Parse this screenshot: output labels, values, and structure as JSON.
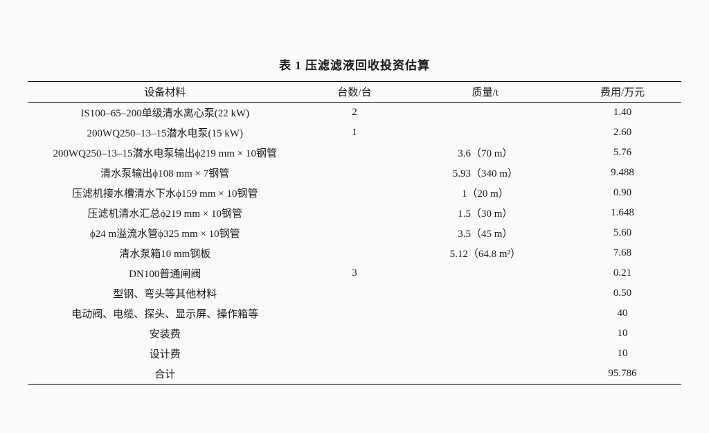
{
  "table": {
    "caption": "表 1  压滤滤液回收投资估算",
    "columns": [
      {
        "key": "material",
        "label": "设备材料"
      },
      {
        "key": "qty",
        "label": "台数/台"
      },
      {
        "key": "mass",
        "label": "质量/t"
      },
      {
        "key": "cost",
        "label": "费用/万元"
      }
    ],
    "rows": [
      {
        "material": "IS100–65–200单级清水离心泵(22 kW)",
        "qty": "2",
        "mass": "",
        "cost": "1.40"
      },
      {
        "material": "200WQ250–13–15潜水电泵(15 kW)",
        "qty": "1",
        "mass": "",
        "cost": "2.60"
      },
      {
        "material": "200WQ250–13–15潜水电泵输出ϕ219 mm × 10钢管",
        "qty": "",
        "mass": "3.6（70 m）",
        "cost": "5.76"
      },
      {
        "material": "清水泵输出ϕ108 mm × 7钢管",
        "qty": "",
        "mass": "5.93（340 m）",
        "cost": "9.488"
      },
      {
        "material": "压滤机接水槽清水下水ϕ159 mm × 10钢管",
        "qty": "",
        "mass": "1（20 m）",
        "cost": "0.90"
      },
      {
        "material": "压滤机清水汇总ϕ219 mm × 10钢管",
        "qty": "",
        "mass": "1.5（30 m）",
        "cost": "1.648"
      },
      {
        "material": "ϕ24 m溢流水管ϕ325 mm × 10钢管",
        "qty": "",
        "mass": "3.5（45 m）",
        "cost": "5.60"
      },
      {
        "material": "清水泵箱10 mm钢板",
        "qty": "",
        "mass": "5.12（64.8 m²）",
        "cost": "7.68"
      },
      {
        "material": "DN100普通闸阀",
        "qty": "3",
        "mass": "",
        "cost": "0.21"
      },
      {
        "material": "型钢、弯头等其他材料",
        "qty": "",
        "mass": "",
        "cost": "0.50"
      },
      {
        "material": "电动阀、电缆、探头、显示屏、操作箱等",
        "qty": "",
        "mass": "",
        "cost": "40"
      },
      {
        "material": "安装费",
        "qty": "",
        "mass": "",
        "cost": "10"
      },
      {
        "material": "设计费",
        "qty": "",
        "mass": "",
        "cost": "10"
      },
      {
        "material": "合计",
        "qty": "",
        "mass": "",
        "cost": "95.786"
      }
    ],
    "style": {
      "background_color": "#fbfaf8",
      "text_color": "#1a1a1a",
      "border_color": "#000000",
      "caption_fontsize": 17,
      "header_fontsize": 15,
      "cell_fontsize": 15,
      "col_widths_pct": [
        42,
        16,
        24,
        18
      ],
      "top_border_width": 1.5,
      "header_bottom_border_width": 1.0,
      "bottom_border_width": 1.5
    }
  }
}
